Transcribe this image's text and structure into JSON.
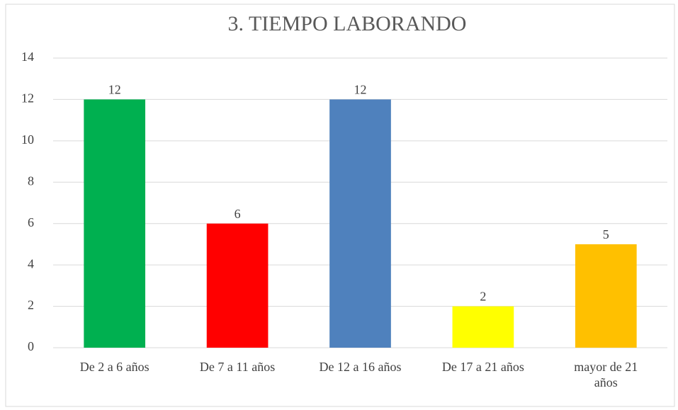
{
  "chart_data": {
    "type": "bar",
    "title": "3. TIEMPO LABORANDO",
    "categories": [
      "De 2 a 6 años",
      "De 7 a 11 años",
      "De 12 a 16 años",
      "De 17 a 21 años",
      "mayor de 21 años"
    ],
    "values": [
      12,
      6,
      12,
      2,
      5
    ],
    "colors": [
      "#00b050",
      "#ff0000",
      "#4f81bd",
      "#ffff00",
      "#ffc000"
    ],
    "ylim": [
      0,
      14
    ],
    "yticks": [
      0,
      2,
      4,
      6,
      8,
      10,
      12,
      14
    ],
    "grid": true
  }
}
